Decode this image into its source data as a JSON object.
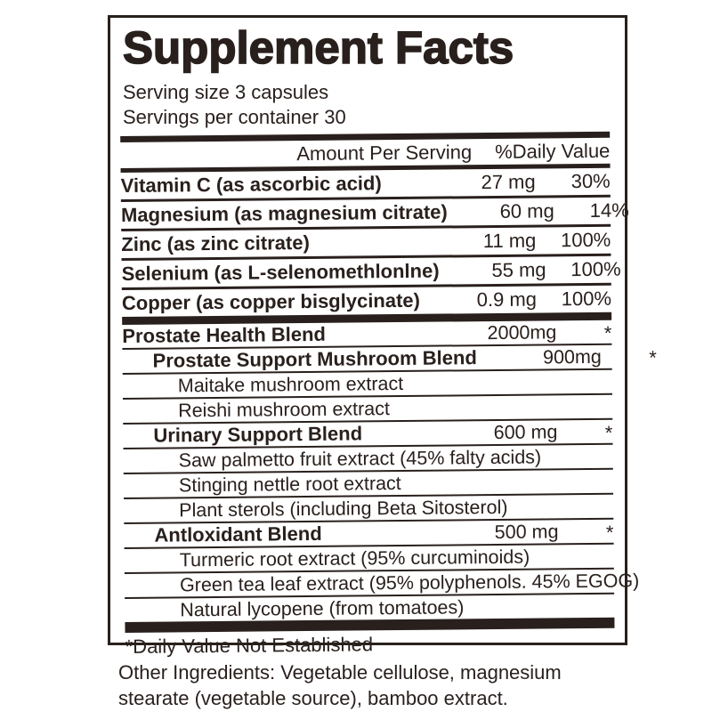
{
  "label": {
    "title": "Supplement Facts",
    "serving_size": "Serving size 3 capsules",
    "servings_per_container": "Servings per container 30",
    "header": {
      "amount": "Amount Per Serving",
      "daily_value": "%Daily Value"
    },
    "nutrients": [
      {
        "name": "Vitamin C (as ascorbic acid)",
        "amount": "27 mg",
        "dv": "30%"
      },
      {
        "name": "Magnesium (as magnesium citrate)",
        "amount": "60 mg",
        "dv": "14%"
      },
      {
        "name": "Zinc (as zinc citrate)",
        "amount": "11 mg",
        "dv": "100%"
      },
      {
        "name": "Selenium (as L-selenomethlonlne)",
        "amount": "55 mg",
        "dv": "100%"
      },
      {
        "name": "Copper (as copper bisglycinate)",
        "amount": "0.9 mg",
        "dv": "100%"
      }
    ],
    "blends": [
      {
        "name": "Prostate Health Blend",
        "amount": "2000mg",
        "dv": "*"
      },
      {
        "name": "Prostate Support Mushroom Blend",
        "amount": "900mg",
        "dv": "*"
      },
      {
        "name": "Maitake mushroom extract",
        "amount": "",
        "dv": ""
      },
      {
        "name": "Reishi mushroom extract",
        "amount": "",
        "dv": ""
      },
      {
        "name": "Urinary Support Blend",
        "amount": "600 mg",
        "dv": "*"
      },
      {
        "name": "Saw palmetto fruit extract (45% falty acids)",
        "amount": "",
        "dv": ""
      },
      {
        "name": "Stinging nettle root extract",
        "amount": "",
        "dv": ""
      },
      {
        "name": "Plant sterols (including Beta Sitosterol)",
        "amount": "",
        "dv": ""
      },
      {
        "name": "Antloxidant Blend",
        "amount": "500 mg",
        "dv": "*"
      },
      {
        "name": "Turmeric root extract (95% curcuminoids)",
        "amount": "",
        "dv": ""
      },
      {
        "name": "Green tea leaf extract (95% polyphenols. 45% EGOG)",
        "amount": "",
        "dv": ""
      },
      {
        "name": "Natural lycopene (from tomatoes)",
        "amount": "",
        "dv": ""
      }
    ],
    "footnote": "*Daily Value Not Established"
  },
  "other_ingredients": "Other Ingredients: Vegetable cellulose, magnesium stearate (vegetable source), bamboo extract.",
  "colors": {
    "ink": "#29201d",
    "background": "#ffffff"
  }
}
